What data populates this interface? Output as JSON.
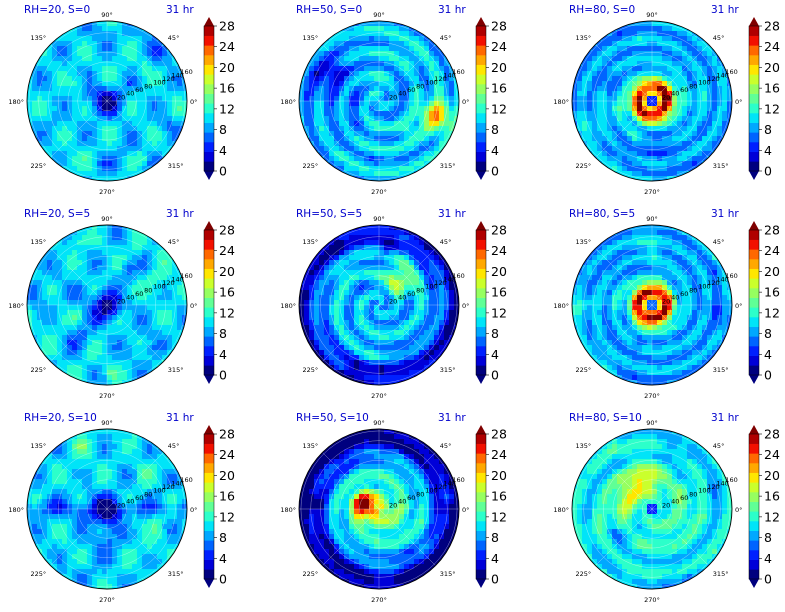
{
  "figure": {
    "time_label": "31 hr",
    "colorbar": {
      "ticks": [
        "0",
        "4",
        "8",
        "12",
        "16",
        "20",
        "24",
        "28"
      ],
      "levels": [
        0,
        2,
        4,
        6,
        8,
        10,
        12,
        14,
        16,
        18,
        20,
        22,
        24,
        26,
        28
      ],
      "colors": [
        "#00007f",
        "#0000d8",
        "#0020ff",
        "#0064ff",
        "#00a8ff",
        "#00e4f8",
        "#2cffca",
        "#60ff96",
        "#96ff60",
        "#caff2c",
        "#ffe600",
        "#ffa800",
        "#ff6800",
        "#f21000",
        "#b00000"
      ],
      "under_color": "#00007f",
      "over_color": "#7f0000"
    },
    "polar_axis": {
      "angle_labels": [
        "90°",
        "45°",
        "0°",
        "315°",
        "270°",
        "225°",
        "180°",
        "135°"
      ],
      "radial_labels": [
        "20",
        "40",
        "60",
        "80",
        "100",
        "120",
        "140",
        "160"
      ]
    }
  },
  "chart_data": [
    {
      "type": "heatmap",
      "title": "RH=20, S=0",
      "time": "31 hr",
      "rh": 20,
      "s": 0
    },
    {
      "type": "heatmap",
      "title": "RH=50, S=0",
      "time": "31 hr",
      "rh": 50,
      "s": 0
    },
    {
      "type": "heatmap",
      "title": "RH=80, S=0",
      "time": "31 hr",
      "rh": 80,
      "s": 0
    },
    {
      "type": "heatmap",
      "title": "RH=20, S=5",
      "time": "31 hr",
      "rh": 20,
      "s": 5
    },
    {
      "type": "heatmap",
      "title": "RH=50, S=5",
      "time": "31 hr",
      "rh": 50,
      "s": 5
    },
    {
      "type": "heatmap",
      "title": "RH=80, S=5",
      "time": "31 hr",
      "rh": 80,
      "s": 5
    },
    {
      "type": "heatmap",
      "title": "RH=20, S=10",
      "time": "31 hr",
      "rh": 20,
      "s": 10
    },
    {
      "type": "heatmap",
      "title": "RH=50, S=10",
      "time": "31 hr",
      "rh": 50,
      "s": 10
    },
    {
      "type": "heatmap",
      "title": "RH=80, S=10",
      "time": "31 hr",
      "rh": 80,
      "s": 10
    }
  ]
}
